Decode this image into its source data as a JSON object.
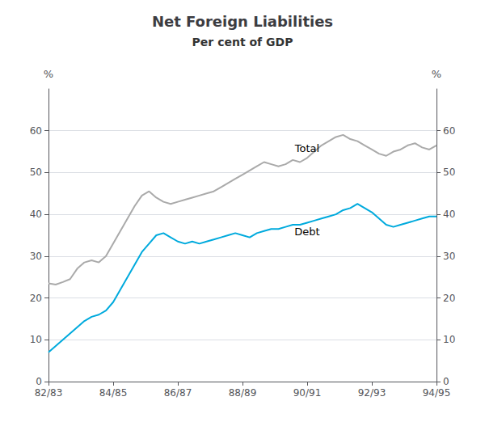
{
  "chart_data": {
    "type": "line",
    "title": "Net Foreign Liabilities",
    "subtitle": "Per cent of GDP",
    "ylabel": "%",
    "y2label": "%",
    "categories": [
      "82/83",
      null,
      null,
      null,
      null,
      null,
      null,
      null,
      null,
      "84/85",
      null,
      null,
      null,
      null,
      null,
      null,
      null,
      null,
      "86/87",
      null,
      null,
      null,
      null,
      null,
      null,
      null,
      null,
      "88/89",
      null,
      null,
      null,
      null,
      null,
      null,
      null,
      null,
      "90/91",
      null,
      null,
      null,
      null,
      null,
      null,
      null,
      null,
      "92/93",
      null,
      null,
      null,
      null,
      null,
      null,
      null,
      null,
      "94/95"
    ],
    "series": [
      {
        "name": "Total",
        "color": "#aaaaaa",
        "values": [
          23.5,
          23.2,
          23.8,
          24.5,
          27.0,
          28.5,
          29.0,
          28.5,
          30.0,
          33.0,
          36.0,
          39.0,
          42.0,
          44.5,
          45.5,
          44.0,
          43.0,
          42.5,
          43.0,
          43.5,
          44.0,
          44.5,
          45.0,
          45.5,
          46.5,
          47.5,
          48.5,
          49.5,
          50.5,
          51.5,
          52.5,
          52.0,
          51.5,
          52.0,
          53.0,
          52.5,
          53.5,
          55.0,
          56.5,
          57.5,
          58.5,
          59.0,
          58.0,
          57.5,
          56.5,
          55.5,
          54.5,
          54.0,
          55.0,
          55.5,
          56.5,
          57.0,
          56.0,
          55.5,
          56.5
        ]
      },
      {
        "name": "Debt",
        "color": "#00aadd",
        "values": [
          7.0,
          8.5,
          10.0,
          11.5,
          13.0,
          14.5,
          15.5,
          16.0,
          17.0,
          19.0,
          22.0,
          25.0,
          28.0,
          31.0,
          33.0,
          35.0,
          35.5,
          34.5,
          33.5,
          33.0,
          33.5,
          33.0,
          33.5,
          34.0,
          34.5,
          35.0,
          35.5,
          35.0,
          34.5,
          35.5,
          36.0,
          36.5,
          36.5,
          37.0,
          37.5,
          37.5,
          38.0,
          38.5,
          39.0,
          39.5,
          40.0,
          41.0,
          41.5,
          42.5,
          41.5,
          40.5,
          39.0,
          37.5,
          37.0,
          37.5,
          38.0,
          38.5,
          39.0,
          39.5,
          39.5
        ]
      }
    ],
    "ylim": [
      0,
      70
    ],
    "yticks": [
      0,
      10,
      20,
      30,
      40,
      50,
      60
    ],
    "y2lim": [
      0,
      70
    ],
    "y2ticks": [
      0,
      10,
      20,
      30,
      40,
      50,
      60
    ],
    "grid": true
  }
}
